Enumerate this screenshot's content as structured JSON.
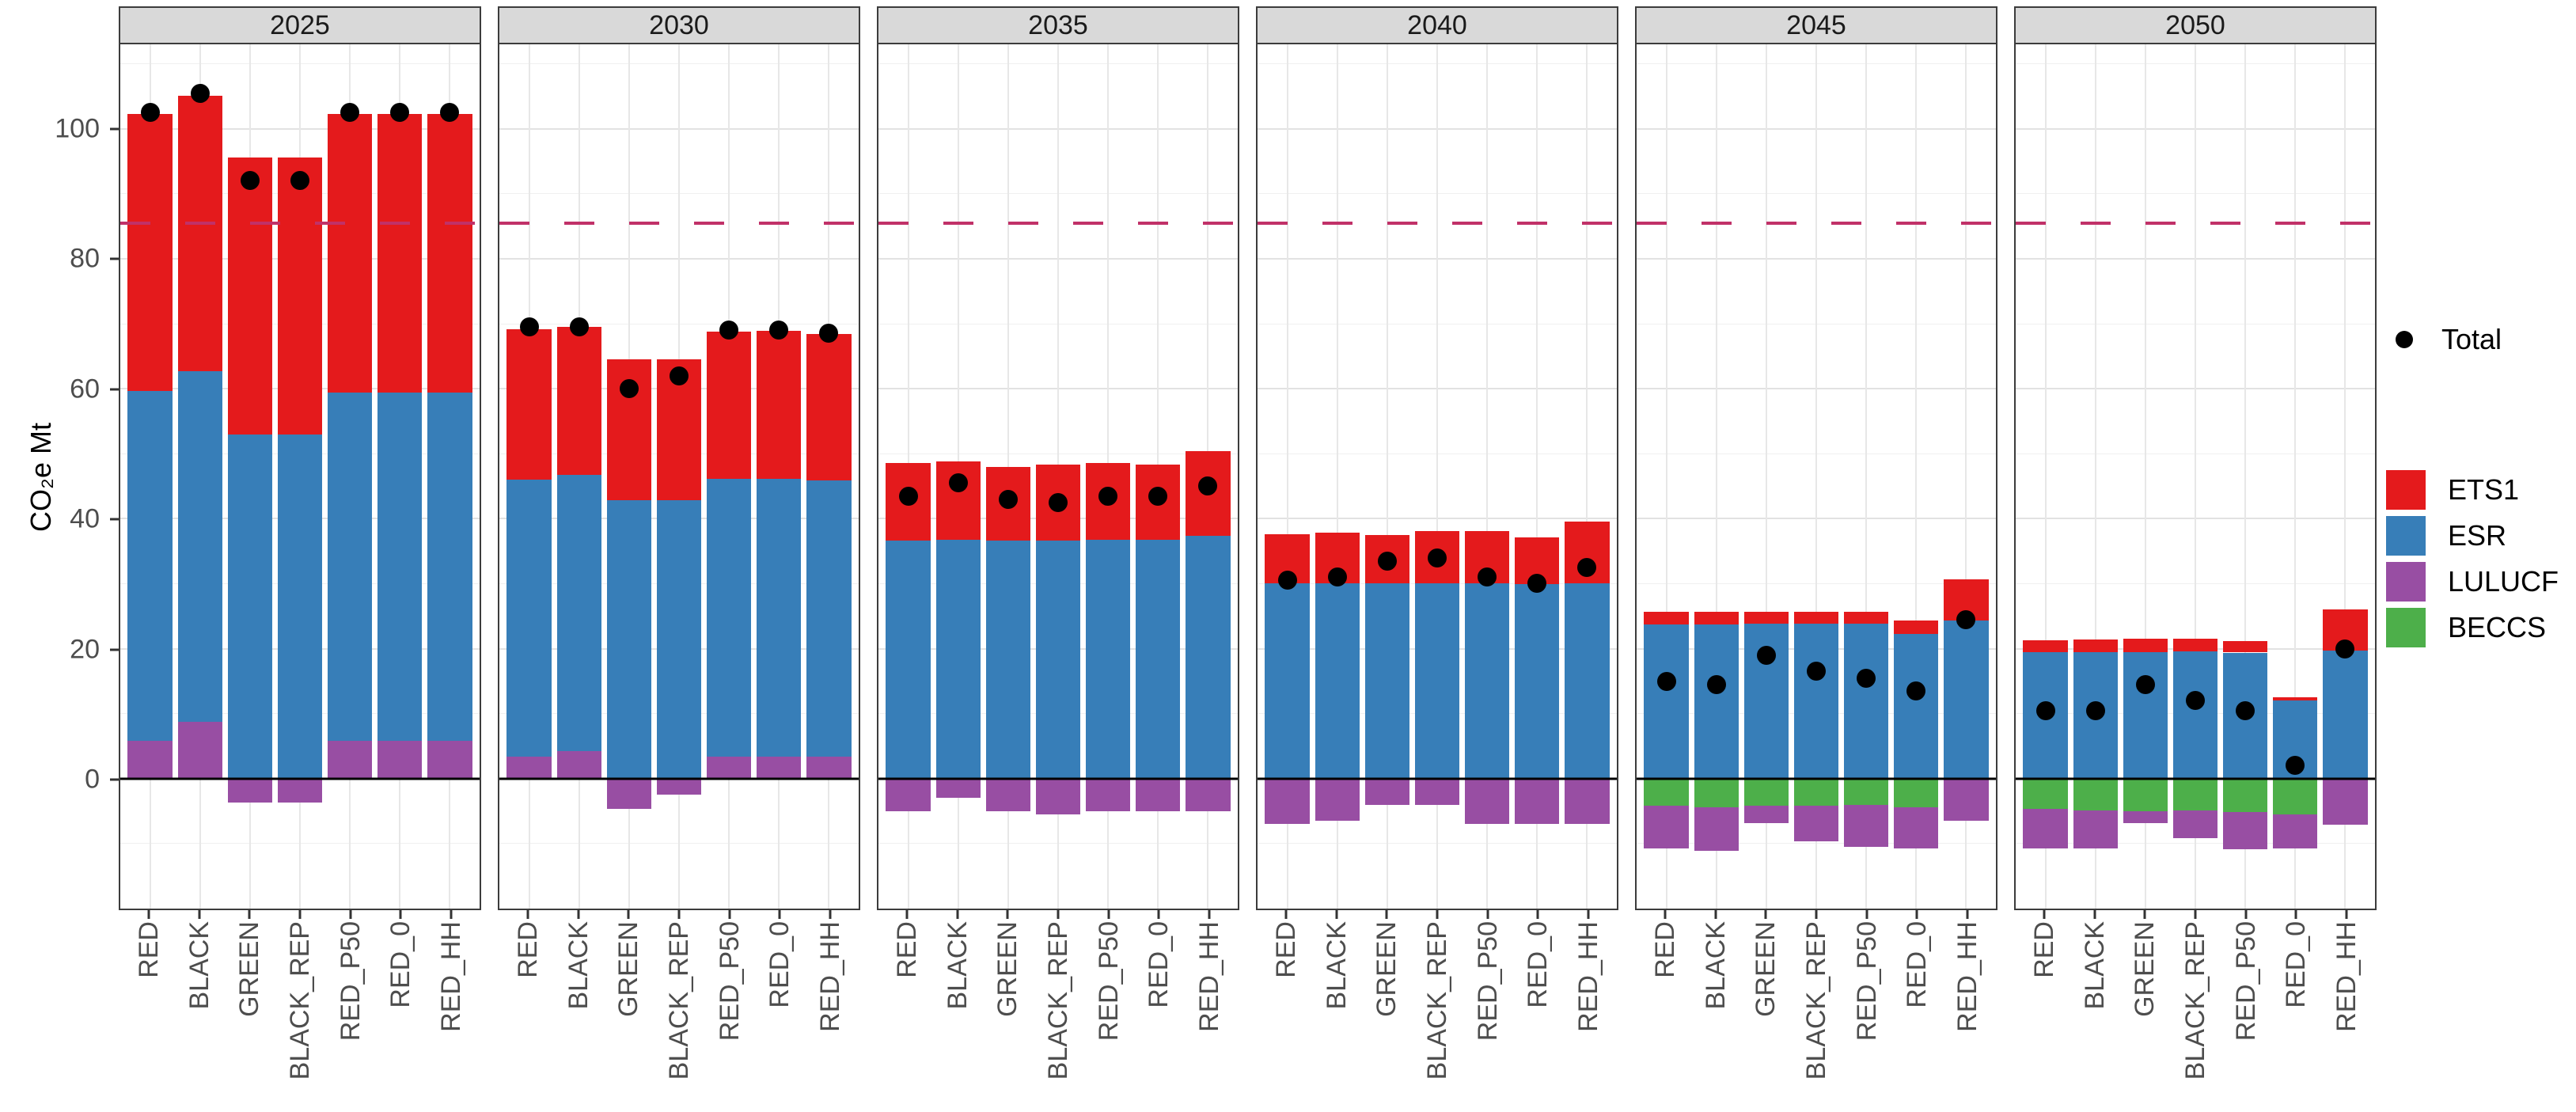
{
  "y_axis": {
    "title": "CO₂e   Mt",
    "ticks": [
      100,
      80,
      60,
      40,
      20,
      0
    ]
  },
  "legend": {
    "total_label": "Total",
    "total_dot_color": "#000000",
    "items": [
      {
        "label": "ETS1",
        "color": "#E41A1C"
      },
      {
        "label": "ESR",
        "color": "#377EB8"
      },
      {
        "label": "LULUCF",
        "color": "#984EA3"
      },
      {
        "label": "BECCS",
        "color": "#4DAF4A"
      }
    ]
  },
  "chart_data": {
    "type": "bar",
    "stacked": true,
    "facet_variable": "year",
    "categories": [
      "RED",
      "BLACK",
      "GREEN",
      "BLACK_REP",
      "RED_P50",
      "RED_0",
      "RED_HH"
    ],
    "series": [
      "ETS1",
      "ESR",
      "LULUCF",
      "BECCS"
    ],
    "colors": {
      "ETS1": "#E41A1C",
      "ESR": "#377EB8",
      "LULUCF": "#984EA3",
      "BECCS": "#4DAF4A",
      "total_dot": "#000000",
      "reference_line": "#C13168",
      "zero_line": "#000000"
    },
    "ylabel": "CO₂e Mt",
    "ylim": [
      -20,
      113
    ],
    "y_major_gridlines": [
      0,
      20,
      40,
      60,
      80,
      100
    ],
    "y_minor_gridlines": [
      -10,
      10,
      30,
      50,
      70,
      90,
      110
    ],
    "reference_line": {
      "value": 85.5,
      "style": "dashed"
    },
    "zero_line": {
      "value": 0
    },
    "legend_position": "right",
    "panels": [
      {
        "year": "2025",
        "bars": [
          {
            "scenario": "RED",
            "ETS1": 42.7,
            "ESR": 53.8,
            "LULUCF": 5.8,
            "BECCS": 0,
            "total": 102.5
          },
          {
            "scenario": "BLACK",
            "ETS1": 42.4,
            "ESR": 54.0,
            "LULUCF": 8.7,
            "BECCS": 0,
            "total": 105.5
          },
          {
            "scenario": "GREEN",
            "ETS1": 42.6,
            "ESR": 53.0,
            "LULUCF": -3.7,
            "BECCS": 0,
            "total": 92.0
          },
          {
            "scenario": "BLACK_REP",
            "ETS1": 42.6,
            "ESR": 53.0,
            "LULUCF": -3.7,
            "BECCS": 0,
            "total": 92.0
          },
          {
            "scenario": "RED_P50",
            "ETS1": 42.9,
            "ESR": 53.6,
            "LULUCF": 5.8,
            "BECCS": 0,
            "total": 102.5
          },
          {
            "scenario": "RED_0",
            "ETS1": 42.9,
            "ESR": 53.6,
            "LULUCF": 5.8,
            "BECCS": 0,
            "total": 102.5
          },
          {
            "scenario": "RED_HH",
            "ETS1": 42.9,
            "ESR": 53.6,
            "LULUCF": 5.8,
            "BECCS": 0,
            "total": 102.5
          }
        ]
      },
      {
        "year": "2030",
        "bars": [
          {
            "scenario": "RED",
            "ETS1": 23.1,
            "ESR": 42.6,
            "LULUCF": 3.4,
            "BECCS": 0,
            "total": 69.5
          },
          {
            "scenario": "BLACK",
            "ETS1": 22.8,
            "ESR": 42.5,
            "LULUCF": 4.2,
            "BECCS": 0,
            "total": 69.5
          },
          {
            "scenario": "GREEN",
            "ETS1": 21.6,
            "ESR": 42.9,
            "LULUCF": -4.7,
            "BECCS": 0,
            "total": 60.0
          },
          {
            "scenario": "BLACK_REP",
            "ETS1": 21.6,
            "ESR": 42.9,
            "LULUCF": -2.5,
            "BECCS": 0,
            "total": 62.0
          },
          {
            "scenario": "RED_P50",
            "ETS1": 22.7,
            "ESR": 42.7,
            "LULUCF": 3.4,
            "BECCS": 0,
            "total": 69.0
          },
          {
            "scenario": "RED_0",
            "ETS1": 22.8,
            "ESR": 42.7,
            "LULUCF": 3.4,
            "BECCS": 0,
            "total": 69.0
          },
          {
            "scenario": "RED_HH",
            "ETS1": 22.5,
            "ESR": 42.5,
            "LULUCF": 3.4,
            "BECCS": 0,
            "total": 68.5
          }
        ]
      },
      {
        "year": "2035",
        "bars": [
          {
            "scenario": "RED",
            "ETS1": 12.0,
            "ESR": 36.6,
            "LULUCF": -5.0,
            "BECCS": 0,
            "total": 43.5
          },
          {
            "scenario": "BLACK",
            "ETS1": 12.0,
            "ESR": 36.8,
            "LULUCF": -3.0,
            "BECCS": 0,
            "total": 45.5
          },
          {
            "scenario": "GREEN",
            "ETS1": 11.4,
            "ESR": 36.6,
            "LULUCF": -5.0,
            "BECCS": 0,
            "total": 43.0
          },
          {
            "scenario": "BLACK_REP",
            "ETS1": 11.7,
            "ESR": 36.6,
            "LULUCF": -5.5,
            "BECCS": 0,
            "total": 42.5
          },
          {
            "scenario": "RED_P50",
            "ETS1": 11.8,
            "ESR": 36.8,
            "LULUCF": -5.0,
            "BECCS": 0,
            "total": 43.5
          },
          {
            "scenario": "RED_0",
            "ETS1": 11.6,
            "ESR": 36.7,
            "LULUCF": -5.0,
            "BECCS": 0,
            "total": 43.5
          },
          {
            "scenario": "RED_HH",
            "ETS1": 13.0,
            "ESR": 37.4,
            "LULUCF": -5.0,
            "BECCS": 0,
            "total": 45.0
          }
        ]
      },
      {
        "year": "2040",
        "bars": [
          {
            "scenario": "RED",
            "ETS1": 7.5,
            "ESR": 30.1,
            "LULUCF": -7.0,
            "BECCS": 0,
            "total": 30.5
          },
          {
            "scenario": "BLACK",
            "ETS1": 7.7,
            "ESR": 30.1,
            "LULUCF": -6.5,
            "BECCS": 0,
            "total": 31.0
          },
          {
            "scenario": "GREEN",
            "ETS1": 7.4,
            "ESR": 30.1,
            "LULUCF": -4.0,
            "BECCS": 0,
            "total": 33.5
          },
          {
            "scenario": "BLACK_REP",
            "ETS1": 8.0,
            "ESR": 30.1,
            "LULUCF": -4.0,
            "BECCS": 0,
            "total": 34.0
          },
          {
            "scenario": "RED_P50",
            "ETS1": 8.0,
            "ESR": 30.1,
            "LULUCF": -7.0,
            "BECCS": 0,
            "total": 31.0
          },
          {
            "scenario": "RED_0",
            "ETS1": 7.2,
            "ESR": 29.9,
            "LULUCF": -7.0,
            "BECCS": 0,
            "total": 30.0
          },
          {
            "scenario": "RED_HH",
            "ETS1": 9.6,
            "ESR": 30.0,
            "LULUCF": -7.0,
            "BECCS": 0,
            "total": 32.5
          }
        ]
      },
      {
        "year": "2045",
        "bars": [
          {
            "scenario": "RED",
            "ETS1": 2.0,
            "ESR": 23.7,
            "LULUCF": -6.6,
            "BECCS": -4.2,
            "total": 15.0
          },
          {
            "scenario": "BLACK",
            "ETS1": 2.0,
            "ESR": 23.7,
            "LULUCF": -6.7,
            "BECCS": -4.4,
            "total": 14.5
          },
          {
            "scenario": "GREEN",
            "ETS1": 1.8,
            "ESR": 23.9,
            "LULUCF": -2.7,
            "BECCS": -4.2,
            "total": 19.0
          },
          {
            "scenario": "BLACK_REP",
            "ETS1": 1.8,
            "ESR": 23.9,
            "LULUCF": -5.4,
            "BECCS": -4.2,
            "total": 16.5
          },
          {
            "scenario": "RED_P50",
            "ETS1": 1.9,
            "ESR": 23.8,
            "LULUCF": -6.4,
            "BECCS": -4.1,
            "total": 15.5
          },
          {
            "scenario": "RED_0",
            "ETS1": 2.0,
            "ESR": 22.3,
            "LULUCF": -6.4,
            "BECCS": -4.4,
            "total": 13.5
          },
          {
            "scenario": "RED_HH",
            "ETS1": 6.4,
            "ESR": 24.3,
            "LULUCF": -6.5,
            "BECCS": 0,
            "total": 24.5
          }
        ]
      },
      {
        "year": "2050",
        "bars": [
          {
            "scenario": "RED",
            "ETS1": 1.8,
            "ESR": 19.5,
            "LULUCF": -6.2,
            "BECCS": -4.6,
            "total": 10.5
          },
          {
            "scenario": "BLACK",
            "ETS1": 1.9,
            "ESR": 19.5,
            "LULUCF": -5.9,
            "BECCS": -4.9,
            "total": 10.5
          },
          {
            "scenario": "GREEN",
            "ETS1": 2.0,
            "ESR": 19.5,
            "LULUCF": -1.9,
            "BECCS": -5.0,
            "total": 14.5
          },
          {
            "scenario": "BLACK_REP",
            "ETS1": 1.9,
            "ESR": 19.6,
            "LULUCF": -4.3,
            "BECCS": -4.9,
            "total": 12.0
          },
          {
            "scenario": "RED_P50",
            "ETS1": 1.8,
            "ESR": 19.4,
            "LULUCF": -5.7,
            "BECCS": -5.2,
            "total": 10.5
          },
          {
            "scenario": "RED_0",
            "ETS1": 0.5,
            "ESR": 12.0,
            "LULUCF": -5.3,
            "BECCS": -5.5,
            "total": 2.0
          },
          {
            "scenario": "RED_HH",
            "ETS1": 6.3,
            "ESR": 19.7,
            "LULUCF": -7.1,
            "BECCS": 0,
            "total": 20.0
          }
        ]
      }
    ]
  }
}
